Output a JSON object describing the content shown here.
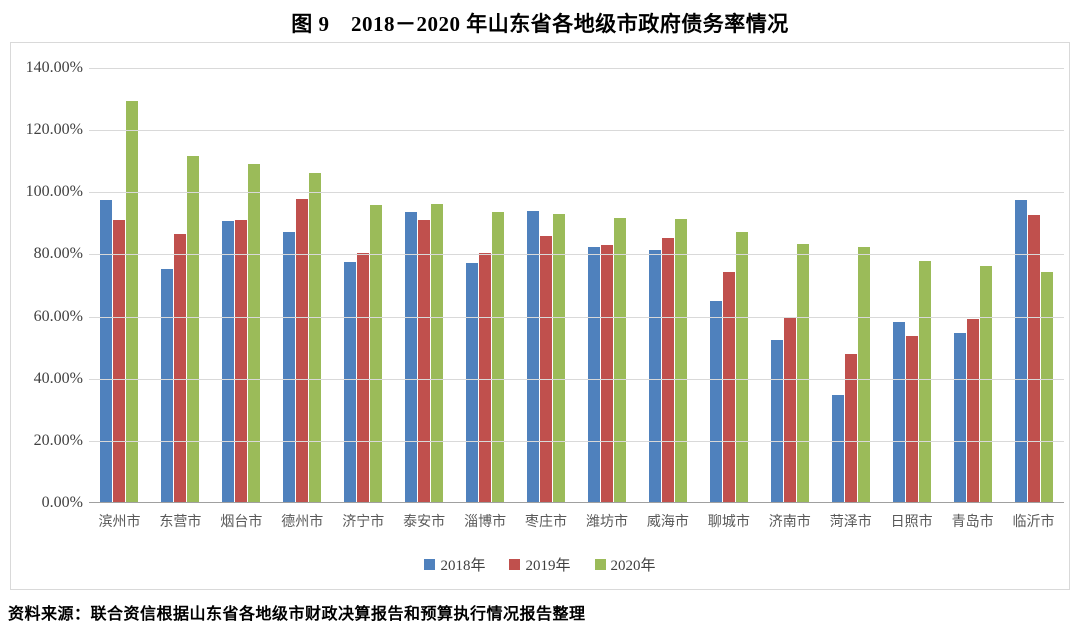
{
  "title": "图 9　2018－2020 年山东省各地级市政府债务率情况",
  "source_note": "资料来源：联合资信根据山东省各地级市财政决算报告和预算执行情况报告整理",
  "colors": {
    "blue": "#4F81BD",
    "red": "#C0504D",
    "green": "#9BBB59",
    "gridline": "#D9D9D9",
    "axis_line": "#A0A0A0",
    "tick_text": "#404040",
    "box_border": "#D9D9D9"
  },
  "chart_data": {
    "type": "bar",
    "title": "图 9　2018－2020 年山东省各地级市政府债务率情况",
    "categories": [
      "滨州市",
      "东营市",
      "烟台市",
      "德州市",
      "济宁市",
      "泰安市",
      "淄博市",
      "枣庄市",
      "潍坊市",
      "威海市",
      "聊城市",
      "济南市",
      "菏泽市",
      "日照市",
      "青岛市",
      "临沂市"
    ],
    "series": [
      {
        "name": "2018年",
        "color_key": "blue",
        "values": [
          97.5,
          75.3,
          90.6,
          87.0,
          77.4,
          93.4,
          77.2,
          94.0,
          82.2,
          81.3,
          64.8,
          52.2,
          34.6,
          58.2,
          54.5,
          97.5
        ]
      },
      {
        "name": "2019年",
        "color_key": "red",
        "values": [
          90.9,
          86.6,
          91.0,
          97.8,
          80.4,
          91.0,
          80.4,
          85.7,
          83.0,
          85.1,
          74.1,
          59.8,
          47.9,
          53.6,
          59.1,
          92.5
        ]
      },
      {
        "name": "2020年",
        "color_key": "green",
        "values": [
          129.5,
          111.5,
          109.0,
          106.1,
          95.9,
          96.1,
          93.4,
          92.9,
          91.7,
          91.2,
          87.2,
          83.3,
          82.4,
          77.8,
          76.0,
          74.3
        ]
      }
    ],
    "xlabel": "",
    "ylabel": "",
    "ylim": [
      0,
      140
    ],
    "ytick_step": 20,
    "ytick_suffix": "%",
    "ytick_decimals": 2,
    "grid": true,
    "legend_position": "bottom"
  }
}
